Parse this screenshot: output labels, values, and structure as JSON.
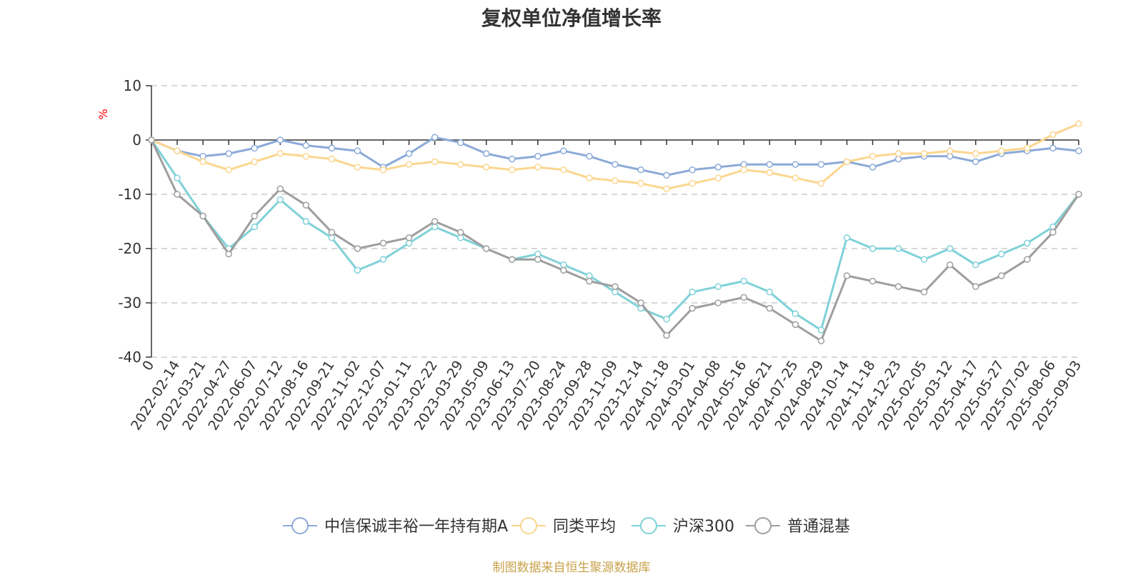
{
  "title": "复权单位净值增长率",
  "source_note": "制图数据来自恒生聚源数据库",
  "chart_data": {
    "type": "line",
    "title": "复权单位净值增长率",
    "ylabel": "%",
    "xlabel": "",
    "ylim": [
      -40,
      10
    ],
    "yticks": [
      10,
      0,
      -10,
      -20,
      -30,
      -40
    ],
    "grid": true,
    "legend_position": "bottom",
    "x_tick_labels": [
      "0",
      "2022-02-14",
      "2022-03-21",
      "2022-04-27",
      "2022-06-07",
      "2022-07-12",
      "2022-08-16",
      "2022-09-21",
      "2022-11-02",
      "2022-12-07",
      "2023-01-11",
      "2023-02-22",
      "2023-03-29",
      "2023-05-09",
      "2023-06-13",
      "2023-07-20",
      "2023-08-24",
      "2023-09-28",
      "2023-11-09",
      "2023-12-14",
      "2024-01-18",
      "2024-03-01",
      "2024-04-08",
      "2024-05-16",
      "2024-06-21",
      "2024-07-25",
      "2024-08-29",
      "2024-10-14",
      "2024-11-18",
      "2024-12-23",
      "2025-02-05",
      "2025-03-12",
      "2025-04-17",
      "2025-05-27",
      "2025-07-02",
      "2025-08-06",
      "2025-09-03"
    ],
    "series": [
      {
        "name": "中信保诚丰裕一年持有期A",
        "color": "#8caad8",
        "values": [
          0,
          -2,
          -3,
          -2.5,
          -1.5,
          0,
          -1,
          -1.5,
          -2,
          -5,
          -2.5,
          0.5,
          -0.5,
          -2.5,
          -3.5,
          -3,
          -2,
          -3,
          -4.5,
          -5.5,
          -6.5,
          -5.5,
          -5,
          -4.5,
          -4.5,
          -4.5,
          -4.5,
          -4,
          -5,
          -3.5,
          -3,
          -3,
          -4,
          -2.5,
          -2,
          -1.5,
          -2
        ]
      },
      {
        "name": "同类平均",
        "color": "#fbd68f",
        "values": [
          0,
          -2,
          -4,
          -5.5,
          -4,
          -2.5,
          -3,
          -3.5,
          -5,
          -5.5,
          -4.5,
          -4,
          -4.5,
          -5,
          -5.5,
          -5,
          -5.5,
          -7,
          -7.5,
          -8,
          -9,
          -8,
          -7,
          -5.5,
          -6,
          -7,
          -8,
          -4,
          -3,
          -2.5,
          -2.5,
          -2,
          -2.5,
          -2,
          -1.5,
          1,
          3
        ]
      },
      {
        "name": "沪深300",
        "color": "#7fd1d8",
        "values": [
          0,
          -7,
          -14,
          -20,
          -16,
          -11,
          -15,
          -18,
          -24,
          -22,
          -19,
          -16,
          -18,
          -20,
          -22,
          -21,
          -23,
          -25,
          -28,
          -31,
          -33,
          -28,
          -27,
          -26,
          -28,
          -32,
          -35,
          -18,
          -20,
          -20,
          -22,
          -20,
          -23,
          -21,
          -19,
          -16,
          -10
        ]
      },
      {
        "name": "普通混基",
        "color": "#9e9e9e",
        "values": [
          0,
          -10,
          -14,
          -21,
          -14,
          -9,
          -12,
          -17,
          -20,
          -19,
          -18,
          -15,
          -17,
          -20,
          -22,
          -22,
          -24,
          -26,
          -27,
          -30,
          -36,
          -31,
          -30,
          -29,
          -31,
          -34,
          -37,
          -25,
          -26,
          -27,
          -28,
          -23,
          -27,
          -25,
          -22,
          -17,
          -10
        ]
      }
    ]
  }
}
